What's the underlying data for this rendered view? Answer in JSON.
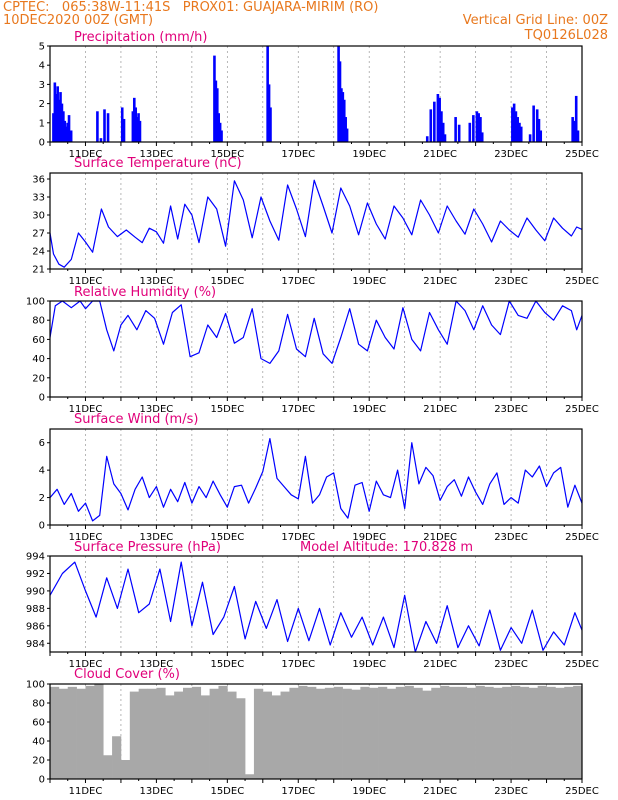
{
  "header": {
    "line1_left": "CPTEC:   065:38W-11:41S   PROX01: GUAJARA-MIRIM (RO)",
    "line2_left": "10DEC2020 00Z (GMT)",
    "line2_right": "Vertical Grid Line: 00Z",
    "line3_right": "TQ0126L028"
  },
  "x_tick_labels": [
    "11DEC",
    "13DEC",
    "15DEC",
    "17DEC",
    "19DEC",
    "21DEC",
    "23DEC",
    "25DEC"
  ],
  "chart_data": [
    {
      "type": "bar",
      "title": "Precipitation (mm/h)",
      "x_range": [
        "10DEC2020 00Z",
        "25DEC2020 00Z"
      ],
      "ylim": [
        0,
        5
      ],
      "y_ticks": [
        "0",
        "1",
        "2",
        "3",
        "4",
        "5"
      ],
      "bar_color": "#0000ff",
      "x_days": [
        0.06,
        0.1,
        0.14,
        0.18,
        0.22,
        0.26,
        0.3,
        0.34,
        0.38,
        0.42,
        0.46,
        0.5,
        0.56,
        1.3,
        1.4,
        1.5,
        1.6,
        2.0,
        2.05,
        2.3,
        2.34,
        2.38,
        2.42,
        2.46,
        2.5,
        4.6,
        4.64,
        4.68,
        4.72,
        4.76,
        4.8,
        6.1,
        6.14,
        6.18,
        8.1,
        8.14,
        8.18,
        8.22,
        8.26,
        8.3,
        8.34,
        10.6,
        10.7,
        10.8,
        10.9,
        10.95,
        11.0,
        11.05,
        11.1,
        11.4,
        11.5,
        11.8,
        11.9,
        12.0,
        12.05,
        12.1,
        12.15,
        13.0,
        13.05,
        13.1,
        13.15,
        13.2,
        13.25,
        13.5,
        13.6,
        13.7,
        13.75,
        13.8,
        14.7,
        14.75,
        14.8,
        14.85
      ],
      "values": [
        1.5,
        3.1,
        2.5,
        2.9,
        2.2,
        2.6,
        2.0,
        1.6,
        1.1,
        0.8,
        1.0,
        1.4,
        0.6,
        1.6,
        0.2,
        1.7,
        1.5,
        1.8,
        1.2,
        1.6,
        2.3,
        1.8,
        1.3,
        1.5,
        1.1,
        4.5,
        3.2,
        2.8,
        1.5,
        1.0,
        0.6,
        5.0,
        3.0,
        1.8,
        5.0,
        4.2,
        2.8,
        2.6,
        2.2,
        1.3,
        0.7,
        0.3,
        1.7,
        2.1,
        2.5,
        2.3,
        1.6,
        1.0,
        0.4,
        1.3,
        0.9,
        1.0,
        1.4,
        1.6,
        1.5,
        1.3,
        0.5,
        1.8,
        2.0,
        1.6,
        1.3,
        1.0,
        0.8,
        0.4,
        1.9,
        1.7,
        1.2,
        0.6,
        1.3,
        1.1,
        2.4,
        0.6
      ]
    },
    {
      "type": "line",
      "title": "Surface Temperature (nC)",
      "x_range": [
        "10DEC2020 00Z",
        "25DEC2020 00Z"
      ],
      "ylim": [
        21,
        37
      ],
      "y_ticks": [
        "21",
        "24",
        "27",
        "30",
        "33",
        "36"
      ],
      "line_color": "#0000ff",
      "x_days": [
        0,
        0.1,
        0.25,
        0.4,
        0.6,
        0.8,
        1.0,
        1.2,
        1.45,
        1.65,
        1.9,
        2.15,
        2.4,
        2.6,
        2.8,
        3.0,
        3.2,
        3.4,
        3.6,
        3.8,
        4.0,
        4.2,
        4.45,
        4.7,
        4.95,
        5.2,
        5.45,
        5.7,
        5.95,
        6.2,
        6.45,
        6.7,
        6.95,
        7.2,
        7.45,
        7.7,
        7.95,
        8.2,
        8.45,
        8.7,
        8.95,
        9.2,
        9.45,
        9.7,
        9.95,
        10.2,
        10.45,
        10.7,
        10.95,
        11.2,
        11.45,
        11.7,
        11.95,
        12.2,
        12.45,
        12.7,
        12.95,
        13.2,
        13.45,
        13.7,
        13.95,
        14.2,
        14.45,
        14.7,
        14.85,
        15.0
      ],
      "values": [
        27,
        23.5,
        21.8,
        21.3,
        22.6,
        27,
        25.5,
        23.8,
        31,
        28,
        26.4,
        27.5,
        26.3,
        25.4,
        27.8,
        27.2,
        25.3,
        31.5,
        26,
        31.8,
        30,
        25.4,
        33,
        31,
        24.8,
        35.7,
        32.5,
        26.2,
        33,
        29,
        25.8,
        35,
        31,
        26.4,
        35.8,
        31.5,
        27,
        34.5,
        31.5,
        26.7,
        32,
        28.5,
        26,
        31.5,
        29.5,
        26.7,
        32.5,
        30,
        27,
        31.5,
        29,
        26.8,
        31,
        28.5,
        25.5,
        29,
        27.5,
        26.3,
        29.5,
        27.5,
        25.7,
        29.5,
        27.8,
        26.5,
        28,
        27.6
      ]
    },
    {
      "type": "line",
      "title": "Relative Humidity (%)",
      "x_range": [
        "10DEC2020 00Z",
        "25DEC2020 00Z"
      ],
      "ylim": [
        0,
        100
      ],
      "y_ticks": [
        "0",
        "20",
        "40",
        "60",
        "80",
        "100"
      ],
      "line_color": "#0000ff",
      "x_days": [
        0,
        0.15,
        0.35,
        0.6,
        0.85,
        1.0,
        1.2,
        1.4,
        1.6,
        1.8,
        2.0,
        2.2,
        2.45,
        2.7,
        2.95,
        3.2,
        3.45,
        3.7,
        3.95,
        4.2,
        4.45,
        4.7,
        4.95,
        5.2,
        5.45,
        5.7,
        5.95,
        6.2,
        6.45,
        6.7,
        6.95,
        7.2,
        7.45,
        7.7,
        7.95,
        8.2,
        8.45,
        8.7,
        8.95,
        9.2,
        9.45,
        9.7,
        9.95,
        10.2,
        10.45,
        10.7,
        10.95,
        11.2,
        11.45,
        11.7,
        11.95,
        12.2,
        12.45,
        12.7,
        12.95,
        13.2,
        13.45,
        13.7,
        13.95,
        14.2,
        14.45,
        14.7,
        14.85,
        15.0
      ],
      "values": [
        62,
        95,
        100,
        93,
        100,
        92,
        100,
        100,
        70,
        48,
        75,
        85,
        70,
        90,
        82,
        55,
        88,
        96,
        42,
        46,
        75,
        62,
        87,
        56,
        62,
        92,
        40,
        35,
        48,
        86,
        50,
        42,
        82,
        45,
        35,
        62,
        92,
        55,
        48,
        80,
        62,
        50,
        93,
        60,
        48,
        88,
        70,
        55,
        100,
        90,
        70,
        95,
        75,
        65,
        100,
        85,
        82,
        100,
        88,
        80,
        95,
        90,
        70,
        85
      ]
    },
    {
      "type": "line",
      "title": "Surface Wind (m/s)",
      "x_range": [
        "10DEC2020 00Z",
        "25DEC2020 00Z"
      ],
      "ylim": [
        0,
        7
      ],
      "y_ticks": [
        "0",
        "2",
        "4",
        "6"
      ],
      "line_color": "#0000ff",
      "x_days": [
        0,
        0.2,
        0.4,
        0.6,
        0.8,
        1.0,
        1.2,
        1.4,
        1.6,
        1.8,
        2.0,
        2.2,
        2.4,
        2.6,
        2.8,
        3.0,
        3.2,
        3.4,
        3.6,
        3.8,
        4.0,
        4.2,
        4.4,
        4.6,
        4.8,
        5.0,
        5.2,
        5.4,
        5.6,
        5.8,
        6.0,
        6.2,
        6.4,
        6.6,
        6.8,
        7.0,
        7.2,
        7.4,
        7.6,
        7.8,
        8.0,
        8.2,
        8.4,
        8.6,
        8.8,
        9.0,
        9.2,
        9.4,
        9.6,
        9.8,
        10.0,
        10.2,
        10.4,
        10.6,
        10.8,
        11.0,
        11.2,
        11.4,
        11.6,
        11.8,
        12.0,
        12.2,
        12.4,
        12.6,
        12.8,
        13.0,
        13.2,
        13.4,
        13.6,
        13.8,
        14.0,
        14.2,
        14.4,
        14.6,
        14.8,
        15.0
      ],
      "values": [
        2.0,
        2.6,
        1.5,
        2.3,
        1.0,
        1.6,
        0.3,
        0.7,
        5.0,
        3.0,
        2.3,
        1.1,
        2.6,
        3.5,
        2.0,
        2.8,
        1.3,
        2.6,
        1.7,
        3.1,
        1.6,
        2.8,
        2.0,
        3.2,
        2.2,
        1.3,
        2.8,
        2.9,
        1.6,
        2.7,
        3.9,
        6.3,
        3.4,
        2.8,
        2.2,
        1.9,
        5.0,
        1.6,
        2.2,
        3.5,
        3.8,
        1.2,
        0.5,
        2.9,
        3.1,
        1.0,
        3.2,
        2.2,
        2.0,
        4.0,
        1.2,
        6.0,
        3.0,
        4.2,
        3.6,
        1.8,
        2.8,
        3.3,
        2.1,
        3.5,
        2.4,
        1.5,
        3.0,
        3.8,
        1.5,
        2.0,
        1.6,
        4.0,
        3.5,
        4.3,
        2.8,
        3.8,
        4.2,
        1.3,
        2.9,
        1.6
      ]
    },
    {
      "type": "line",
      "title": "Surface Pressure (hPa)",
      "annotation": "Model Altitude: 170.828 m",
      "x_range": [
        "10DEC2020 00Z",
        "25DEC2020 00Z"
      ],
      "ylim": [
        983,
        994
      ],
      "y_ticks": [
        "984",
        "986",
        "988",
        "990",
        "992",
        "994"
      ],
      "line_color": "#0000ff",
      "x_days": [
        0,
        0.35,
        0.7,
        1.0,
        1.3,
        1.6,
        1.9,
        2.2,
        2.5,
        2.8,
        3.1,
        3.4,
        3.7,
        4.0,
        4.3,
        4.6,
        4.9,
        5.2,
        5.5,
        5.8,
        6.1,
        6.4,
        6.7,
        7.0,
        7.3,
        7.6,
        7.9,
        8.2,
        8.5,
        8.8,
        9.1,
        9.4,
        9.7,
        10.0,
        10.3,
        10.6,
        10.9,
        11.2,
        11.5,
        11.8,
        12.1,
        12.4,
        12.7,
        13.0,
        13.3,
        13.6,
        13.9,
        14.2,
        14.5,
        14.8,
        15.0
      ],
      "values": [
        989.5,
        992,
        993.3,
        990,
        987,
        991.5,
        988,
        992.5,
        987.5,
        988.5,
        992.5,
        986.5,
        993.3,
        986,
        991,
        985,
        987,
        990.5,
        984.5,
        988.8,
        985.7,
        989,
        984.2,
        988,
        984.3,
        988,
        983.8,
        987.5,
        984.7,
        987,
        983.8,
        987,
        983.5,
        989.5,
        983,
        986.5,
        984,
        988.3,
        983.5,
        986,
        983.7,
        987.8,
        983.2,
        985.8,
        984,
        987.8,
        983.2,
        985.3,
        983.8,
        987.5,
        985.5
      ]
    },
    {
      "type": "bar",
      "title": "Cloud Cover (%)",
      "x_range": [
        "10DEC2020 00Z",
        "25DEC2020 00Z"
      ],
      "ylim": [
        0,
        100
      ],
      "y_ticks": [
        "0",
        "20",
        "40",
        "60",
        "80",
        "100"
      ],
      "bar_color": "#a8a8a8",
      "x_days": [
        0,
        0.25,
        0.5,
        0.75,
        1.0,
        1.25,
        1.5,
        1.75,
        2.0,
        2.25,
        2.5,
        2.75,
        3.0,
        3.25,
        3.5,
        3.75,
        4.0,
        4.25,
        4.5,
        4.75,
        5.0,
        5.25,
        5.5,
        5.75,
        6.0,
        6.25,
        6.5,
        6.75,
        7.0,
        7.25,
        7.5,
        7.75,
        8.0,
        8.25,
        8.5,
        8.75,
        9.0,
        9.25,
        9.5,
        9.75,
        10.0,
        10.25,
        10.5,
        10.75,
        11.0,
        11.25,
        11.5,
        11.75,
        12.0,
        12.25,
        12.5,
        12.75,
        13.0,
        13.25,
        13.5,
        13.75,
        14.0,
        14.25,
        14.5,
        14.75
      ],
      "values": [
        97,
        95,
        97,
        95,
        98,
        100,
        25,
        45,
        20,
        92,
        95,
        95,
        96,
        88,
        92,
        96,
        97,
        88,
        95,
        98,
        92,
        85,
        5,
        95,
        92,
        88,
        92,
        96,
        98,
        97,
        95,
        96,
        97,
        95,
        94,
        97,
        96,
        97,
        95,
        97,
        98,
        96,
        93,
        96,
        98,
        97,
        97,
        96,
        98,
        97,
        96,
        97,
        98,
        97,
        96,
        98,
        97,
        96,
        97,
        98
      ]
    }
  ]
}
